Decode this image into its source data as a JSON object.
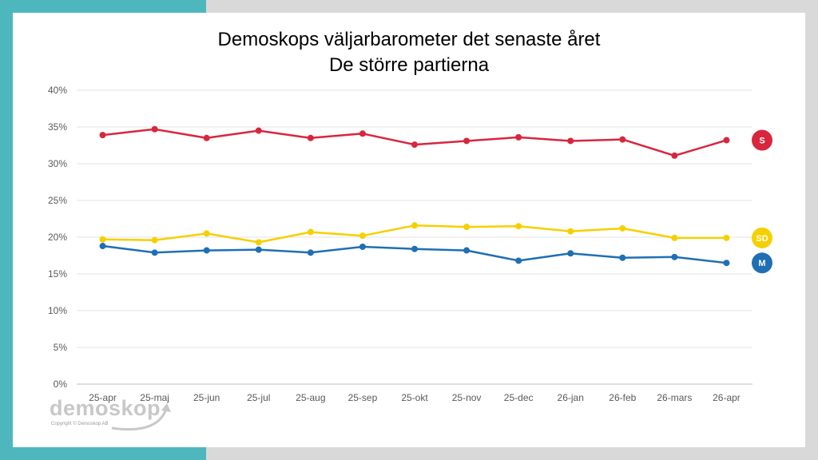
{
  "colors": {
    "S": "#d7263d",
    "SD": "#f5d000",
    "M": "#1f6fb5",
    "frame_teal": "#4eb6bd",
    "frame_gray": "#d9d9d9"
  },
  "logo": {
    "wordmark": "demoskop",
    "copyright": "Copyright © Demoskop AB"
  },
  "chart_data": {
    "type": "line",
    "title": "Demoskops väljarbarometer det senaste året",
    "subtitle": "De större partierna",
    "categories": [
      "25-apr",
      "25-maj",
      "25-jun",
      "25-jul",
      "25-aug",
      "25-sep",
      "25-okt",
      "25-nov",
      "25-dec",
      "26-jan",
      "26-feb",
      "26-mars",
      "26-apr"
    ],
    "ylim": [
      0,
      40
    ],
    "yticks": [
      0,
      5,
      10,
      15,
      20,
      25,
      30,
      35,
      40
    ],
    "ytick_labels": [
      "0%",
      "5%",
      "10%",
      "15%",
      "20%",
      "25%",
      "30%",
      "35%",
      "40%"
    ],
    "grid": true,
    "series": [
      {
        "name": "S",
        "color": "#d7263d",
        "values": [
          33.9,
          34.7,
          33.5,
          34.5,
          33.5,
          34.1,
          32.6,
          33.1,
          33.6,
          33.1,
          33.3,
          31.1,
          33.2
        ]
      },
      {
        "name": "SD",
        "color": "#f5d000",
        "values": [
          19.7,
          19.6,
          20.5,
          19.3,
          20.7,
          20.2,
          21.6,
          21.4,
          21.5,
          20.8,
          21.2,
          19.9,
          19.9
        ]
      },
      {
        "name": "M",
        "color": "#1f6fb5",
        "values": [
          18.8,
          17.9,
          18.2,
          18.3,
          17.9,
          18.7,
          18.4,
          18.2,
          16.8,
          17.8,
          17.2,
          17.3,
          16.5
        ]
      }
    ]
  }
}
